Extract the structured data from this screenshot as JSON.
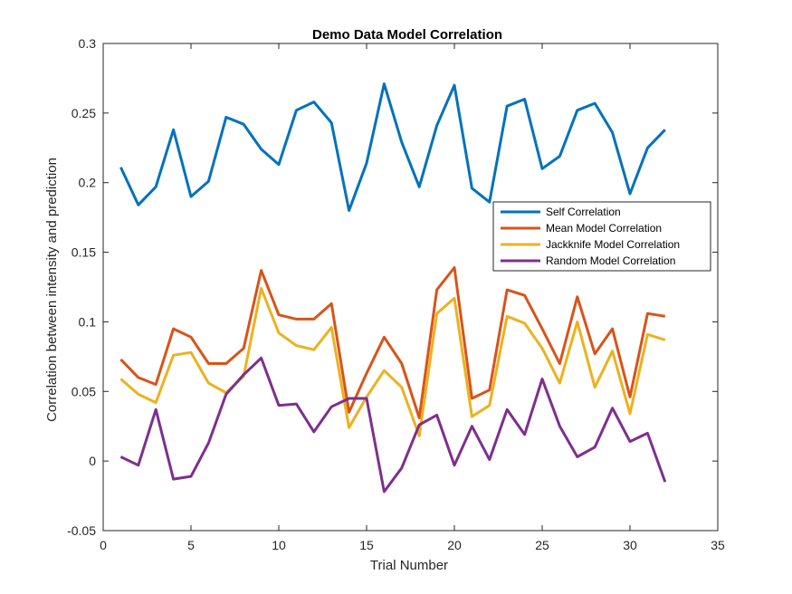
{
  "chart_data": {
    "type": "line",
    "title": "Demo Data Model Correlation",
    "xlabel": "Trial Number",
    "ylabel": "Correlation between intensity and prediction",
    "xlim": [
      0,
      35
    ],
    "ylim": [
      -0.05,
      0.3
    ],
    "xticks": [
      0,
      5,
      10,
      15,
      20,
      25,
      30,
      35
    ],
    "yticks": [
      -0.05,
      0,
      0.05,
      0.1,
      0.15,
      0.2,
      0.25,
      0.3
    ],
    "xtick_labels": [
      "0",
      "5",
      "10",
      "15",
      "20",
      "25",
      "30",
      "35"
    ],
    "ytick_labels": [
      "-0.05",
      "0",
      "0.05",
      "0.1",
      "0.15",
      "0.2",
      "0.25",
      "0.3"
    ],
    "grid": false,
    "legend_position": "right",
    "x": [
      1,
      2,
      3,
      4,
      5,
      6,
      7,
      8,
      9,
      10,
      11,
      12,
      13,
      14,
      15,
      16,
      17,
      18,
      19,
      20,
      21,
      22,
      23,
      24,
      25,
      26,
      27,
      28,
      29,
      30,
      31,
      32
    ],
    "series": [
      {
        "name": "Self Correlation",
        "color": "#0072BD",
        "values": [
          0.211,
          0.184,
          0.197,
          0.238,
          0.19,
          0.201,
          0.247,
          0.242,
          0.224,
          0.213,
          0.252,
          0.258,
          0.243,
          0.18,
          0.214,
          0.271,
          0.229,
          0.197,
          0.241,
          0.27,
          0.196,
          0.186,
          0.255,
          0.26,
          0.21,
          0.219,
          0.252,
          0.257,
          0.236,
          0.192,
          0.225,
          0.238
        ]
      },
      {
        "name": "Mean Model Correlation",
        "color": "#D95319",
        "values": [
          0.073,
          0.06,
          0.055,
          0.095,
          0.089,
          0.07,
          0.07,
          0.081,
          0.137,
          0.105,
          0.102,
          0.102,
          0.113,
          0.035,
          0.063,
          0.089,
          0.07,
          0.031,
          0.123,
          0.139,
          0.045,
          0.051,
          0.123,
          0.119,
          0.095,
          0.07,
          0.118,
          0.077,
          0.095,
          0.046,
          0.106,
          0.104
        ]
      },
      {
        "name": "Jackknife Model Correlation",
        "color": "#EDB120",
        "values": [
          0.059,
          0.048,
          0.042,
          0.076,
          0.078,
          0.056,
          0.049,
          0.061,
          0.124,
          0.092,
          0.083,
          0.08,
          0.096,
          0.024,
          0.046,
          0.065,
          0.053,
          0.018,
          0.106,
          0.117,
          0.032,
          0.04,
          0.104,
          0.099,
          0.081,
          0.056,
          0.1,
          0.053,
          0.079,
          0.034,
          0.091,
          0.087
        ]
      },
      {
        "name": "Random Model Correlation",
        "color": "#7E2F8E",
        "values": [
          0.003,
          -0.003,
          0.037,
          -0.013,
          -0.011,
          0.013,
          0.048,
          0.062,
          0.074,
          0.04,
          0.041,
          0.021,
          0.039,
          0.045,
          0.045,
          -0.022,
          -0.005,
          0.026,
          0.033,
          -0.003,
          0.025,
          0.001,
          0.037,
          0.019,
          0.059,
          0.025,
          0.003,
          0.01,
          0.038,
          0.014,
          0.02,
          -0.015
        ]
      }
    ]
  }
}
